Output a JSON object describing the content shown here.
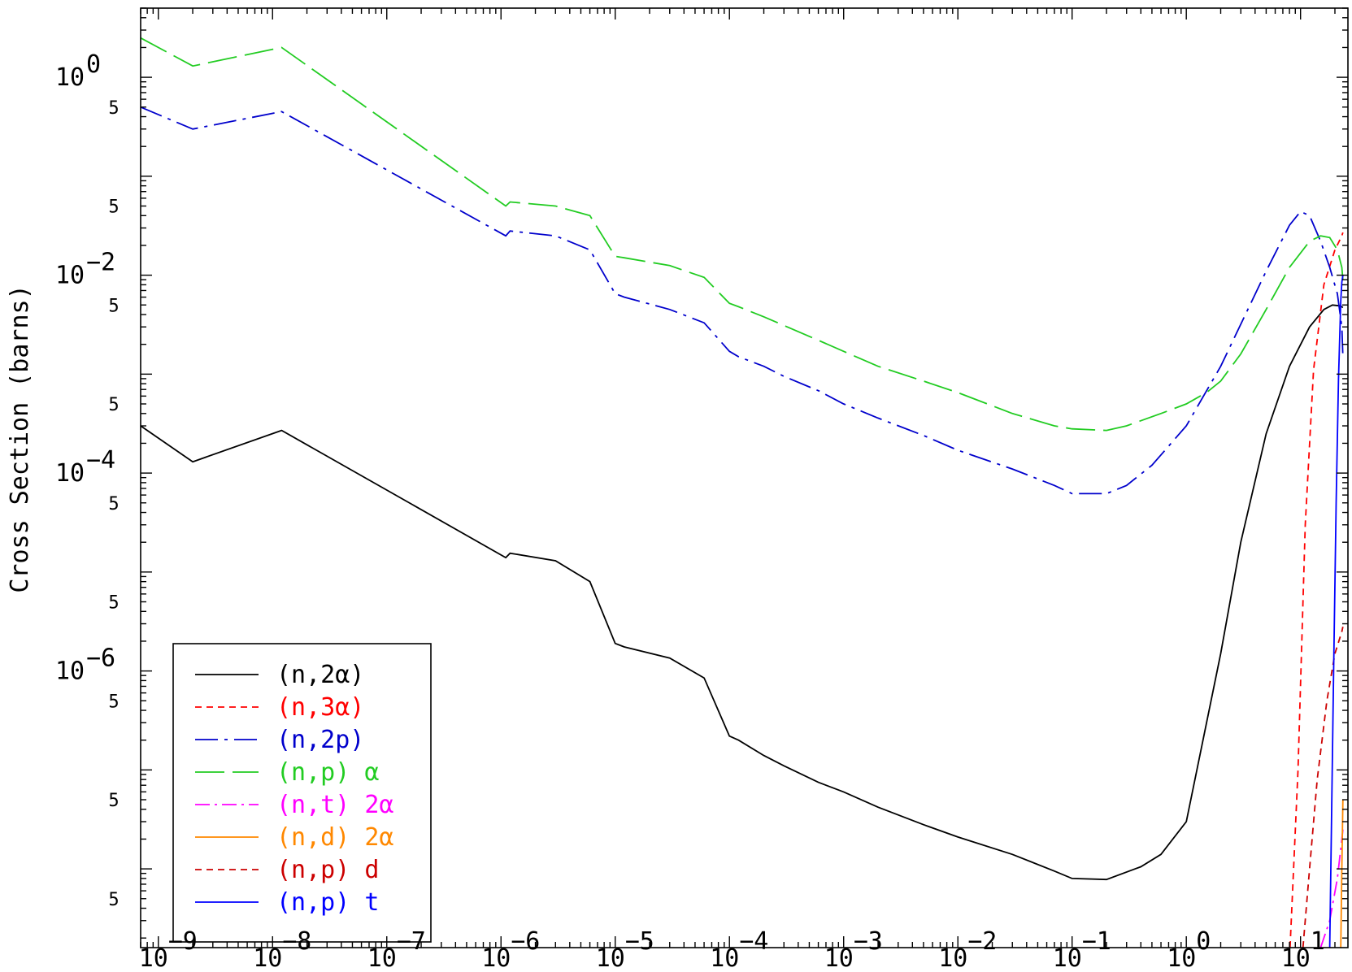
{
  "chart_data": {
    "type": "line",
    "title": "",
    "xlabel": "",
    "ylabel": "Cross Section (barns)",
    "x_scale": "log",
    "y_scale": "log",
    "xlim": [
      7e-10,
      26
    ],
    "ylim": [
      1.6e-09,
      5.0
    ],
    "grid": false,
    "legend_position": "bottom-left",
    "x_major_ticks": [
      {
        "base": "10",
        "exp": "−9"
      },
      {
        "base": "10",
        "exp": "−8"
      },
      {
        "base": "10",
        "exp": "−7"
      },
      {
        "base": "10",
        "exp": "−6"
      },
      {
        "base": "10",
        "exp": "−5"
      },
      {
        "base": "10",
        "exp": "−4"
      },
      {
        "base": "10",
        "exp": "−3"
      },
      {
        "base": "10",
        "exp": "−2"
      },
      {
        "base": "10",
        "exp": "−1"
      },
      {
        "base": "10",
        "exp": "0"
      },
      {
        "base": "10",
        "exp": "1"
      }
    ],
    "y_major_ticks": [
      {
        "value": 1,
        "base": "10",
        "exp": "0"
      },
      {
        "value": 0.01,
        "base": "10",
        "exp": "−2"
      },
      {
        "value": 0.0001,
        "base": "10",
        "exp": "−4"
      },
      {
        "value": 1e-06,
        "base": "10",
        "exp": "−6"
      }
    ],
    "y_minor_labels": [
      {
        "value": 0.5,
        "label": "5"
      },
      {
        "value": 0.05,
        "label": "5"
      },
      {
        "value": 0.005,
        "label": "5"
      },
      {
        "value": 0.0005,
        "label": "5"
      },
      {
        "value": 5e-05,
        "label": "5"
      },
      {
        "value": 5e-06,
        "label": "5"
      },
      {
        "value": 5e-07,
        "label": "5"
      },
      {
        "value": 5e-08,
        "label": "5"
      },
      {
        "value": 5e-09,
        "label": "5"
      }
    ],
    "series": [
      {
        "name": "(n,2α)",
        "color": "#000000",
        "dash": "",
        "x": [
          7e-10,
          2e-09,
          1.2e-08,
          1.1e-06,
          1.2e-06,
          3e-06,
          6e-06,
          1e-05,
          1.2e-05,
          3e-05,
          6e-05,
          0.0001,
          0.00012,
          0.0002,
          0.0003,
          0.0006,
          0.001,
          0.002,
          0.005,
          0.01,
          0.03,
          0.07,
          0.1,
          0.2,
          0.4,
          0.6,
          1.0,
          2.0,
          3.0,
          5.0,
          8.0,
          12.0,
          16.0,
          19.0,
          22.0,
          23.0,
          23.5
        ],
        "y": [
          0.0003,
          0.00013,
          0.00027,
          1.4e-05,
          1.55e-05,
          1.3e-05,
          8e-06,
          1.9e-06,
          1.75e-06,
          1.35e-06,
          8.5e-07,
          2.2e-07,
          2e-07,
          1.4e-07,
          1.1e-07,
          7.5e-08,
          6e-08,
          4.2e-08,
          2.8e-08,
          2.1e-08,
          1.4e-08,
          9.5e-09,
          8e-09,
          7.8e-09,
          1.05e-08,
          1.4e-08,
          3e-08,
          1.5e-06,
          2e-05,
          0.00025,
          0.0012,
          0.003,
          0.0045,
          0.005,
          0.0049,
          0.0048,
          0.0047
        ]
      },
      {
        "name": "(n,3α)",
        "color": "#ff0000",
        "dash": "8,6",
        "x": [
          8.1,
          9.5,
          11.0,
          13.0,
          16.0,
          20.0,
          23.0,
          23.5
        ],
        "y": [
          1.6e-09,
          1e-07,
          3e-05,
          0.0011,
          0.008,
          0.018,
          0.025,
          0.027
        ]
      },
      {
        "name": "(n,2p)",
        "color": "#0000cc",
        "dash": "28,8,4,8",
        "x": [
          7e-10,
          2e-09,
          1.2e-08,
          1.1e-06,
          1.2e-06,
          3e-06,
          6e-06,
          1e-05,
          1.2e-05,
          3e-05,
          6e-05,
          0.0001,
          0.00012,
          0.0002,
          0.0003,
          0.0006,
          0.001,
          0.002,
          0.005,
          0.01,
          0.03,
          0.07,
          0.1,
          0.2,
          0.3,
          0.5,
          1.0,
          2.0,
          5.0,
          8.0,
          10.0,
          12.0,
          15.0,
          18.0,
          21.0,
          23.0,
          23.5
        ],
        "y": [
          0.5,
          0.3,
          0.45,
          0.025,
          0.028,
          0.025,
          0.018,
          0.0065,
          0.006,
          0.0045,
          0.0033,
          0.0017,
          0.0015,
          0.0012,
          0.00095,
          0.00068,
          0.0005,
          0.00036,
          0.00024,
          0.00017,
          0.00011,
          7.5e-05,
          6.2e-05,
          6.2e-05,
          7.5e-05,
          0.00012,
          0.0003,
          0.0012,
          0.011,
          0.032,
          0.044,
          0.04,
          0.022,
          0.012,
          0.0065,
          0.003,
          0.0015
        ]
      },
      {
        "name": "(n,p) α",
        "color": "#22cc22",
        "dash": "36,10",
        "x": [
          7e-10,
          2e-09,
          1.2e-08,
          1.1e-06,
          1.2e-06,
          3e-06,
          6e-06,
          1e-05,
          1.2e-05,
          3e-05,
          6e-05,
          0.0001,
          0.00012,
          0.0002,
          0.0003,
          0.0006,
          0.001,
          0.002,
          0.005,
          0.01,
          0.03,
          0.07,
          0.1,
          0.2,
          0.3,
          0.6,
          1.0,
          1.5,
          2.0,
          3.0,
          5.0,
          8.0,
          12.0,
          15.0,
          18.0,
          21.0,
          23.0,
          23.5
        ],
        "y": [
          2.5,
          1.3,
          2.0,
          0.05,
          0.055,
          0.05,
          0.04,
          0.0155,
          0.015,
          0.0125,
          0.0095,
          0.0052,
          0.0048,
          0.0038,
          0.0031,
          0.0022,
          0.0017,
          0.0012,
          0.00085,
          0.00065,
          0.0004,
          0.0003,
          0.00028,
          0.00027,
          0.0003,
          0.0004,
          0.0005,
          0.00065,
          0.00085,
          0.0016,
          0.0045,
          0.012,
          0.022,
          0.025,
          0.024,
          0.018,
          0.012,
          0.009
        ]
      },
      {
        "name": "(n,t) 2α",
        "color": "#ff00ff",
        "dash": "18,6,3,6",
        "x": [
          15.0,
          18.0,
          21.0,
          23.0,
          23.5
        ],
        "y": [
          1.6e-09,
          3e-09,
          8e-09,
          2e-08,
          2.5e-08
        ]
      },
      {
        "name": "(n,d) 2α",
        "color": "#ff8800",
        "dash": "",
        "x": [
          22.5,
          23.0,
          23.5
        ],
        "y": [
          1.6e-09,
          1e-08,
          5e-08
        ]
      },
      {
        "name": "(n,p) d",
        "color": "#cc0000",
        "dash": "8,6",
        "x": [
          10.5,
          12.0,
          14.0,
          17.0,
          20.0,
          23.0,
          23.5
        ],
        "y": [
          1.6e-09,
          1e-08,
          8e-08,
          5e-07,
          1.5e-06,
          2.5e-06,
          2.8e-06
        ]
      },
      {
        "name": "(n,p) t",
        "color": "#0000ff",
        "dash": "",
        "x": [
          18.0,
          19.5,
          20.5,
          21.5,
          22.5,
          23.0,
          23.5
        ],
        "y": [
          1.6e-09,
          1e-06,
          5e-05,
          0.0009,
          0.0055,
          0.0085,
          0.01
        ]
      }
    ]
  }
}
